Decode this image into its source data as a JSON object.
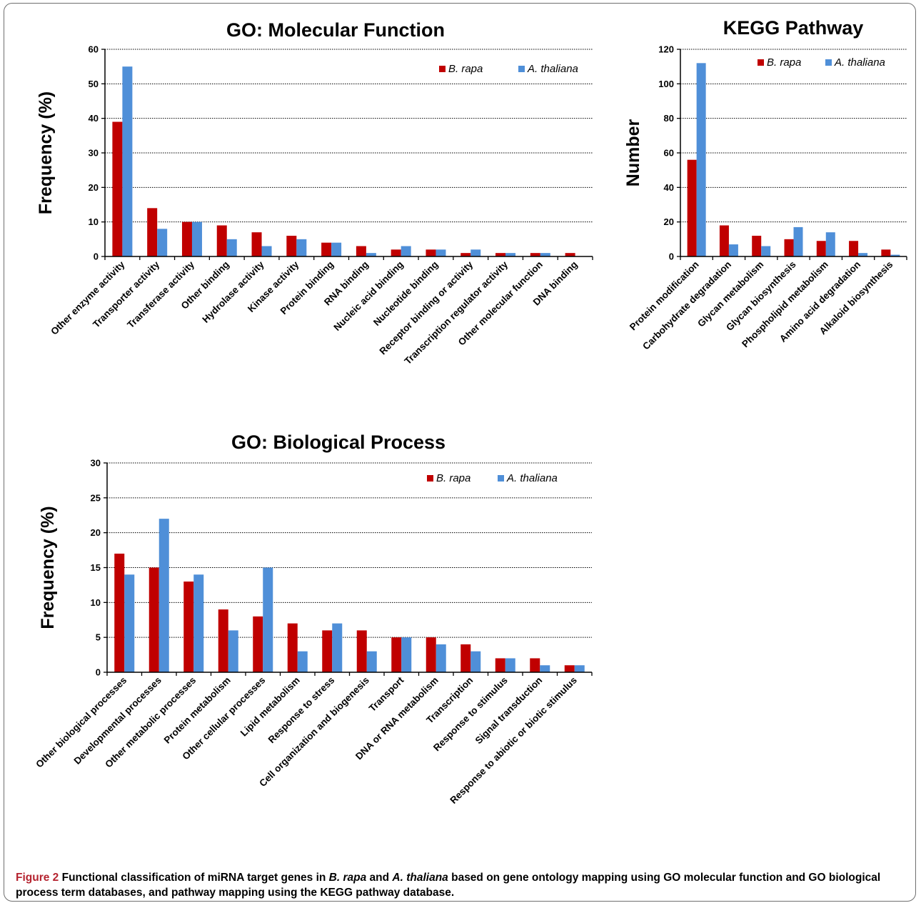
{
  "colors": {
    "b_rapa": "#c00000",
    "a_thaliana": "#4f8fd8",
    "caption_label": "#b5232f"
  },
  "chart_data": [
    {
      "id": "mf",
      "type": "bar",
      "title": "GO: Molecular Function",
      "xlabel": "",
      "ylabel": "Frequency (%)",
      "ylim": [
        0,
        60
      ],
      "yticks": [
        0,
        10,
        20,
        30,
        40,
        50,
        60
      ],
      "grid": true,
      "legend": "top-right",
      "categories": [
        "Other enzyme activity",
        "Transporter activity",
        "Transferase activity",
        "Other binding",
        "Hydrolase activity",
        "Kinase activity",
        "Protein binding",
        "RNA binding",
        "Nucleic acid binding",
        "Nucleotide binding",
        "Receptor binding or activity",
        "Transcription regulator activity",
        "Other molecular function",
        "DNA binding"
      ],
      "series": [
        {
          "name": "B. rapa",
          "values": [
            39,
            14,
            10,
            9,
            7,
            6,
            4,
            3,
            2,
            2,
            1,
            1,
            1,
            1
          ]
        },
        {
          "name": "A. thaliana",
          "values": [
            55,
            8,
            10,
            5,
            3,
            5,
            4,
            1,
            3,
            2,
            2,
            1,
            1,
            0
          ]
        }
      ]
    },
    {
      "id": "kegg",
      "type": "bar",
      "title": "KEGG Pathway",
      "xlabel": "",
      "ylabel": "Number",
      "ylim": [
        0,
        120
      ],
      "yticks": [
        0,
        20,
        40,
        60,
        80,
        100,
        120
      ],
      "grid": true,
      "legend": "top-right",
      "categories": [
        "Protein modification",
        "Carbohydrate degradation",
        "Glycan metabolism",
        "Glycan biosynthesis",
        "Phospholipid metabolism",
        "Amino acid degradation",
        "Alkaloid biosynthesis"
      ],
      "series": [
        {
          "name": "B. rapa",
          "values": [
            56,
            18,
            12,
            10,
            9,
            9,
            4
          ]
        },
        {
          "name": "A. thaliana",
          "values": [
            112,
            7,
            6,
            17,
            14,
            2,
            1
          ]
        }
      ]
    },
    {
      "id": "bp",
      "type": "bar",
      "title": "GO: Biological Process",
      "xlabel": "",
      "ylabel": "Frequency (%)",
      "ylim": [
        0,
        30
      ],
      "yticks": [
        0,
        5,
        10,
        15,
        20,
        25,
        30
      ],
      "grid": true,
      "legend": "top-right",
      "categories": [
        "Other biological processes",
        "Developmental processes",
        "Other metabolic processes",
        "Protein metabolism",
        "Other cellular processes",
        "Lipid metabolism",
        "Response to stress",
        "Cell organization and biogenesis",
        "Transport",
        "DNA or RNA metabolism",
        "Transcription",
        "Response to stimulus",
        "Signal transduction",
        "Response to abiotic or biotic stimulus"
      ],
      "series": [
        {
          "name": "B. rapa",
          "values": [
            17,
            15,
            13,
            9,
            8,
            7,
            6,
            6,
            5,
            5,
            4,
            2,
            2,
            1
          ]
        },
        {
          "name": "A. thaliana",
          "values": [
            14,
            22,
            14,
            6,
            15,
            3,
            7,
            3,
            5,
            4,
            3,
            2,
            1,
            1
          ]
        }
      ]
    }
  ],
  "caption": {
    "label": "Figure 2",
    "text_1": " Functional classification of miRNA target genes in ",
    "species_1": "B. rapa",
    "text_2": " and ",
    "species_2": "A. thaliana",
    "text_3": " based on gene ontology mapping using GO molecular function and GO biological process term databases, and pathway mapping using the KEGG pathway database."
  }
}
